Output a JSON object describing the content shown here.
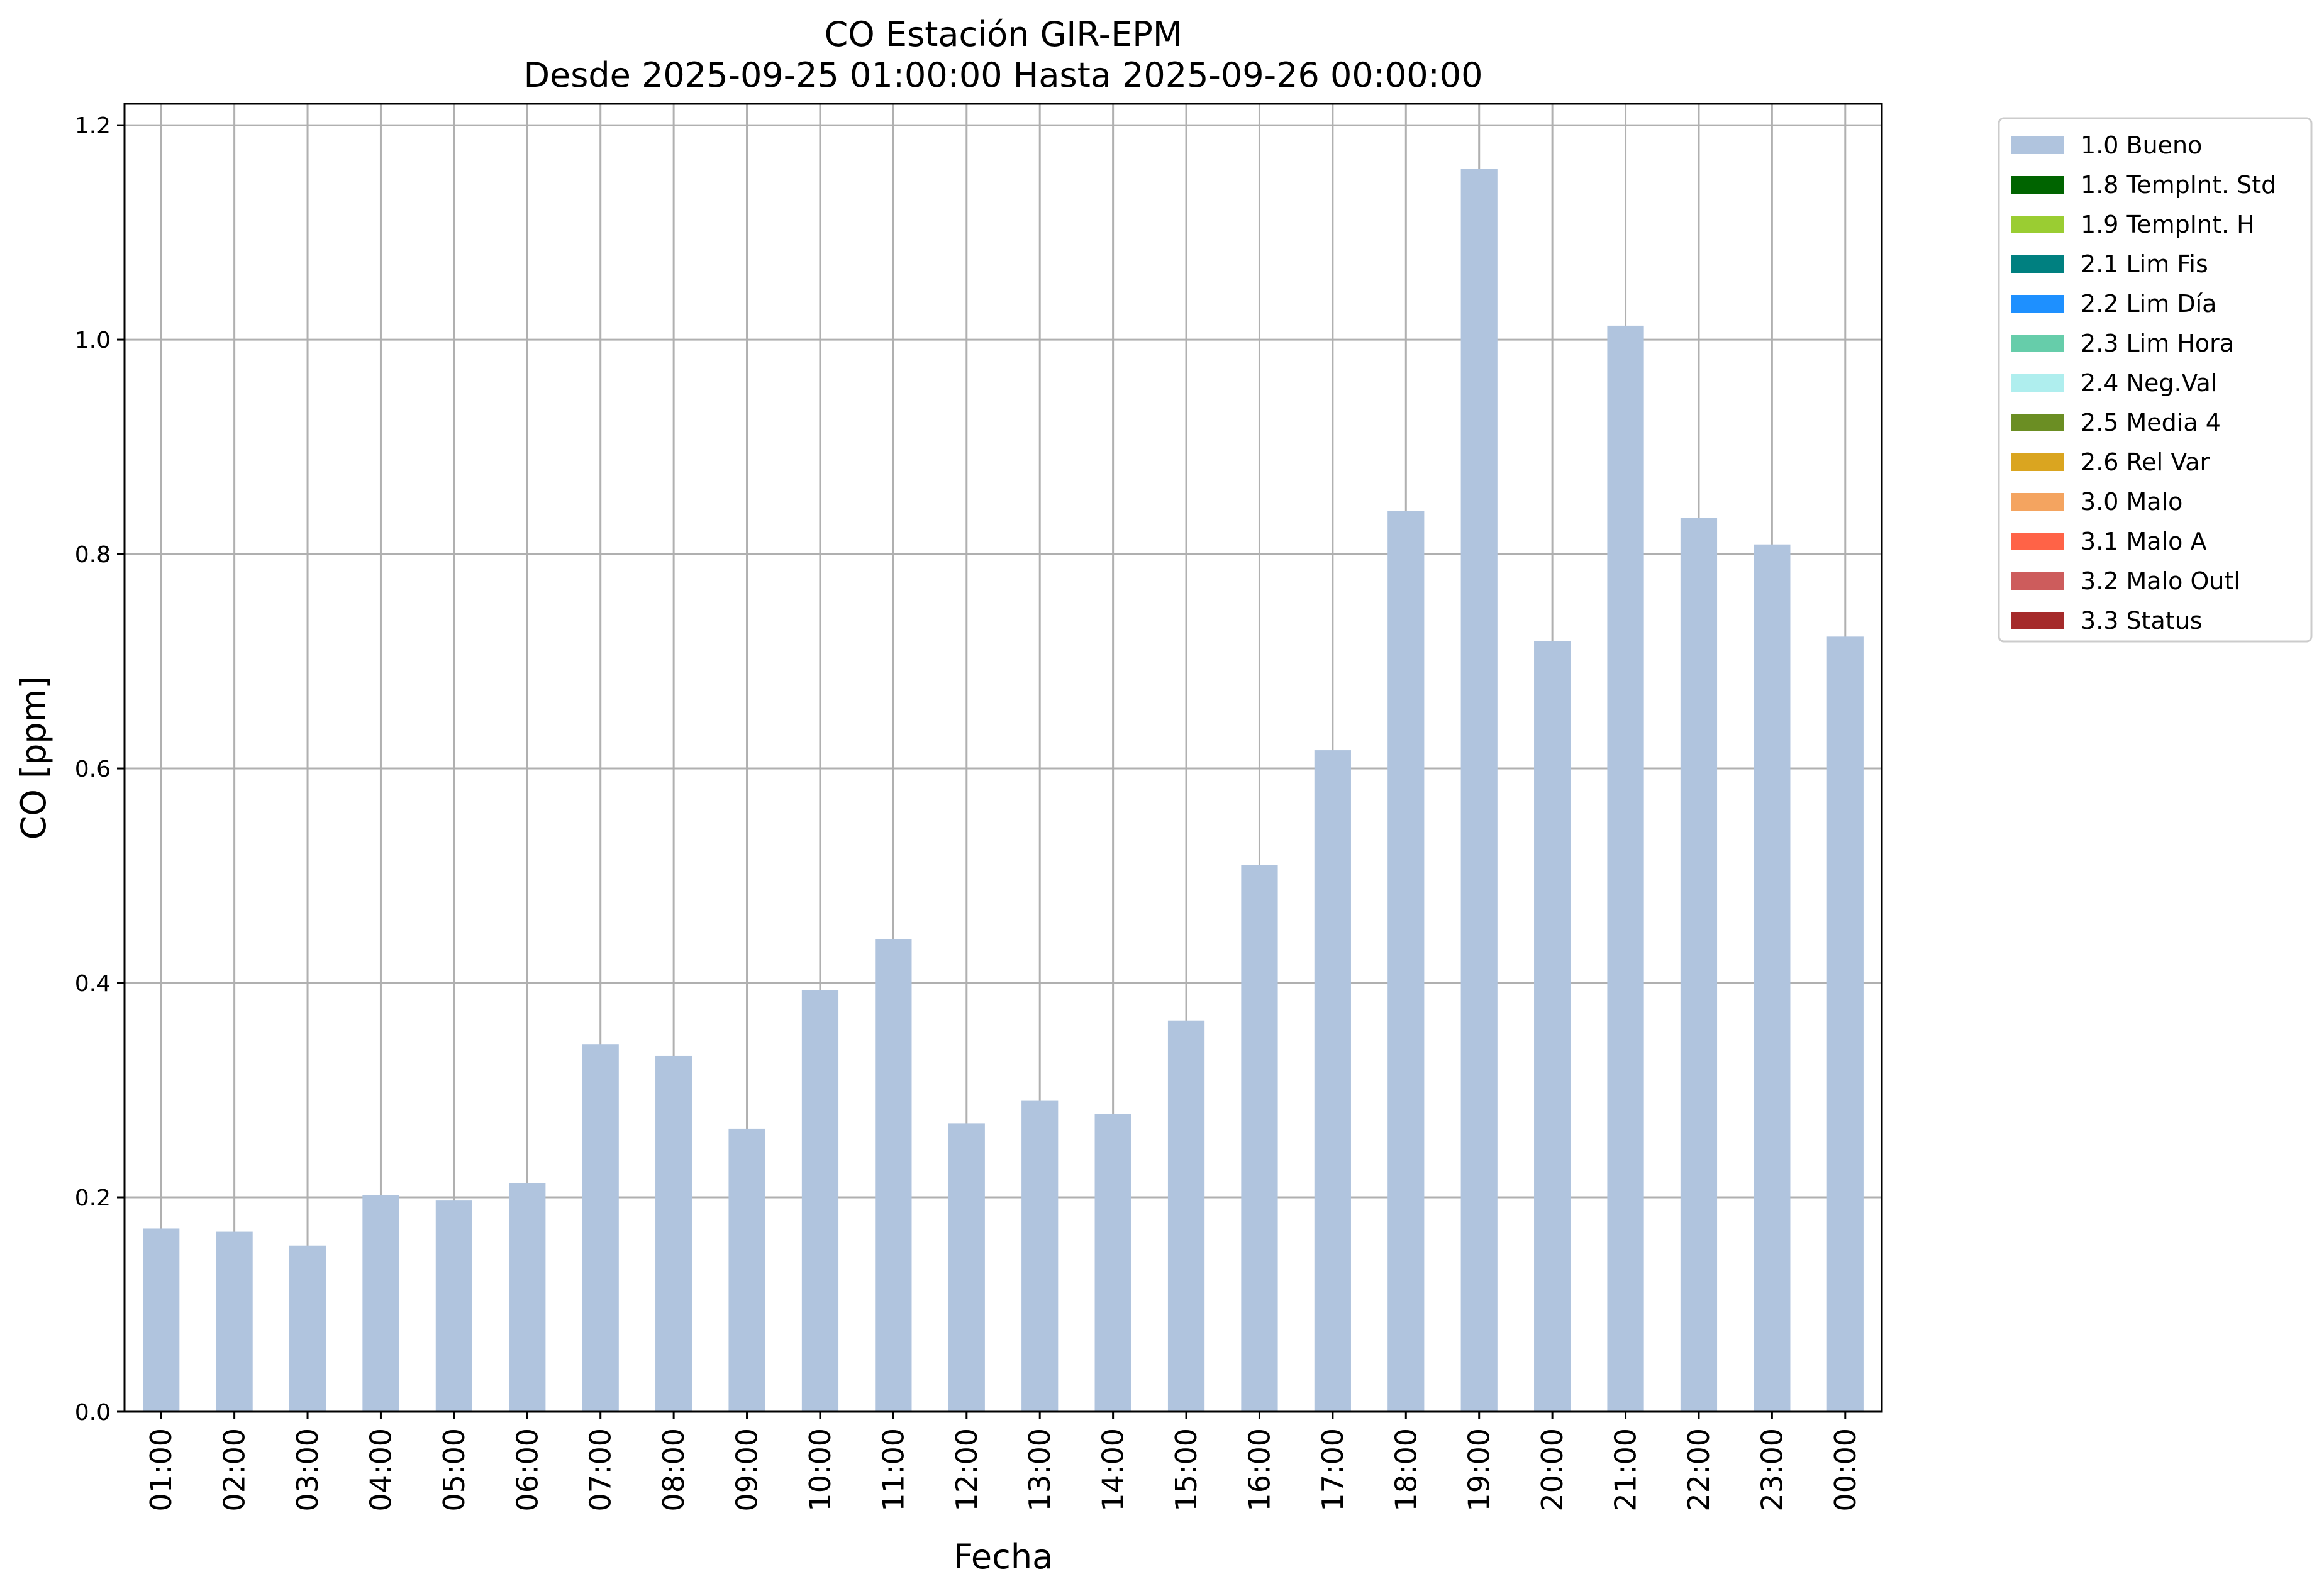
{
  "chart_data": {
    "type": "bar",
    "title": "CO Estación GIR-EPM",
    "subtitle": "Desde 2025-09-25 01:00:00 Hasta 2025-09-26 00:00:00",
    "xlabel": "Fecha",
    "ylabel": "CO [ppm]",
    "ylim": [
      0,
      1.22
    ],
    "yticks": [
      "0.0",
      "0.2",
      "0.4",
      "0.6",
      "0.8",
      "1.0",
      "1.2"
    ],
    "grid": true,
    "legend_position": "outside-top-right",
    "categories": [
      "01:00",
      "02:00",
      "03:00",
      "04:00",
      "05:00",
      "06:00",
      "07:00",
      "08:00",
      "09:00",
      "10:00",
      "11:00",
      "12:00",
      "13:00",
      "14:00",
      "15:00",
      "16:00",
      "17:00",
      "18:00",
      "19:00",
      "20:00",
      "21:00",
      "22:00",
      "23:00",
      "00:00"
    ],
    "series": [
      {
        "name": "1.0 Bueno",
        "color": "#b0c4de",
        "values": [
          0.171,
          0.168,
          0.155,
          0.202,
          0.197,
          0.213,
          0.343,
          0.332,
          0.264,
          0.393,
          0.441,
          0.269,
          0.29,
          0.278,
          0.365,
          0.51,
          0.617,
          0.84,
          1.159,
          0.719,
          1.013,
          0.834,
          0.809,
          0.723
        ]
      }
    ],
    "legend": [
      {
        "label": "1.0 Bueno",
        "color": "#b0c4de"
      },
      {
        "label": "1.8 TempInt. Std",
        "color": "#006400"
      },
      {
        "label": "1.9 TempInt. H",
        "color": "#9acd32"
      },
      {
        "label": "2.1 Lim Fis",
        "color": "#008080"
      },
      {
        "label": "2.2 Lim Día",
        "color": "#1e90ff"
      },
      {
        "label": "2.3 Lim Hora",
        "color": "#66cdaa"
      },
      {
        "label": "2.4 Neg.Val",
        "color": "#afeeee"
      },
      {
        "label": "2.5 Media 4",
        "color": "#6b8e23"
      },
      {
        "label": "2.6 Rel Var",
        "color": "#daa520"
      },
      {
        "label": "3.0 Malo",
        "color": "#f4a460"
      },
      {
        "label": "3.1 Malo A",
        "color": "#ff6347"
      },
      {
        "label": "3.2 Malo Outl",
        "color": "#cd5c5c"
      },
      {
        "label": "3.3 Status",
        "color": "#a52a2a"
      }
    ]
  }
}
